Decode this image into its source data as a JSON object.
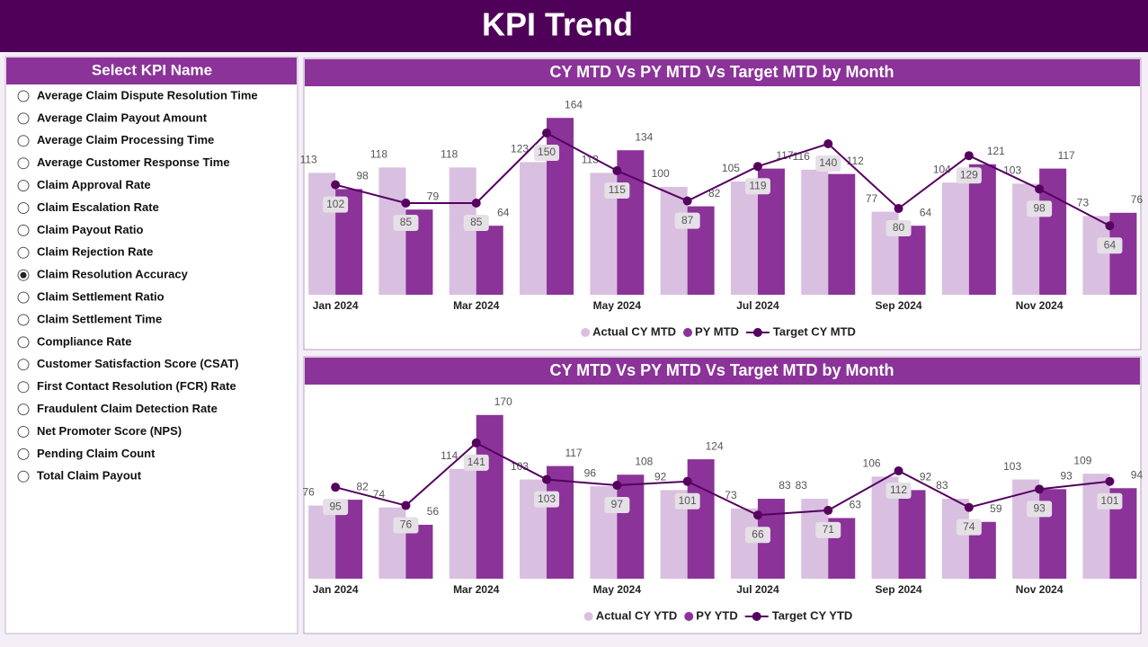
{
  "header": {
    "title": "KPI Trend"
  },
  "slicer": {
    "title": "Select KPI Name",
    "items": [
      "Average Claim Dispute Resolution Time",
      "Average Claim Payout Amount",
      "Average Claim Processing Time",
      "Average Customer Response Time",
      "Claim Approval Rate",
      "Claim Escalation Rate",
      "Claim Payout Ratio",
      "Claim Rejection Rate",
      "Claim Resolution Accuracy",
      "Claim Settlement Ratio",
      "Claim Settlement Time",
      "Compliance Rate",
      "Customer Satisfaction Score (CSAT)",
      "First Contact Resolution (FCR) Rate",
      "Fraudulent Claim Detection Rate",
      "Net Promoter Score (NPS)",
      "Pending Claim Count",
      "Total Claim Payout"
    ],
    "selected": "Claim Resolution Accuracy"
  },
  "chart_data": [
    {
      "type": "combo",
      "title": "CY MTD Vs PY MTD Vs Target MTD by Month",
      "categories": [
        "Jan 2024",
        null,
        "Mar 2024",
        null,
        "May 2024",
        null,
        "Jul 2024",
        null,
        "Sep 2024",
        null,
        "Nov 2024",
        null
      ],
      "ylim": [
        0,
        190
      ],
      "series": [
        {
          "name": "Actual CY MTD",
          "type": "bar",
          "color": "#d9bfe0",
          "values": [
            113,
            118,
            118,
            123,
            113,
            100,
            105,
            116,
            77,
            104,
            103,
            73
          ]
        },
        {
          "name": "PY MTD",
          "type": "bar",
          "color": "#8b3399",
          "values": [
            98,
            79,
            64,
            164,
            134,
            82,
            117,
            112,
            64,
            121,
            117,
            76
          ]
        },
        {
          "name": "Target CY MTD",
          "type": "line",
          "color": "#55005f",
          "values": [
            102,
            85,
            85,
            150,
            115,
            87,
            119,
            140,
            80,
            129,
            98,
            64
          ]
        }
      ]
    },
    {
      "type": "combo",
      "title": "CY MTD Vs PY MTD Vs Target MTD by Month",
      "categories": [
        "Jan 2024",
        null,
        "Mar 2024",
        null,
        "May 2024",
        null,
        "Jul 2024",
        null,
        "Sep 2024",
        null,
        "Nov 2024",
        null
      ],
      "ylim": [
        0,
        195
      ],
      "series": [
        {
          "name": "Actual CY YTD",
          "type": "bar",
          "color": "#d9bfe0",
          "values": [
            76,
            74,
            114,
            103,
            96,
            92,
            73,
            83,
            106,
            83,
            103,
            109
          ]
        },
        {
          "name": "PY YTD",
          "type": "bar",
          "color": "#8b3399",
          "values": [
            82,
            56,
            170,
            117,
            108,
            124,
            83,
            63,
            92,
            59,
            93,
            94
          ]
        },
        {
          "name": "Target CY YTD",
          "type": "line",
          "color": "#55005f",
          "values": [
            95,
            76,
            141,
            103,
            97,
            101,
            66,
            71,
            112,
            74,
            93,
            101
          ]
        }
      ]
    }
  ]
}
